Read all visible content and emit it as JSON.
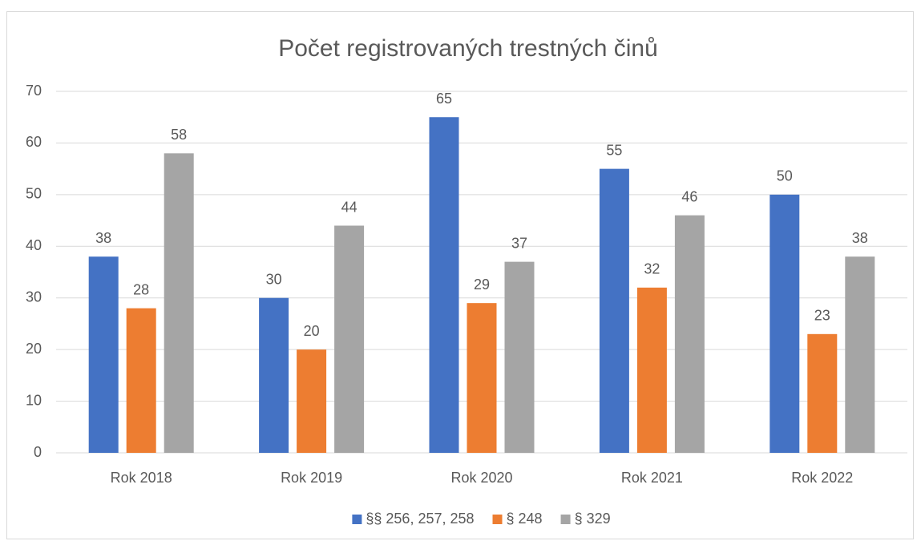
{
  "chart_data": {
    "type": "bar",
    "title": "Počet registrovaných trestných činů",
    "categories": [
      "Rok 2018",
      "Rok 2019",
      "Rok 2020",
      "Rok 2021",
      "Rok 2022"
    ],
    "series": [
      {
        "name": "§§ 256, 257, 258",
        "color": "#4472c4",
        "values": [
          38,
          30,
          65,
          55,
          50
        ]
      },
      {
        "name": "§ 248",
        "color": "#ed7d31",
        "values": [
          28,
          20,
          29,
          32,
          23
        ]
      },
      {
        "name": "§ 329",
        "color": "#a5a5a5",
        "values": [
          58,
          44,
          37,
          46,
          38
        ]
      }
    ],
    "ylim": [
      0,
      70
    ],
    "yticks": [
      0,
      10,
      20,
      30,
      40,
      50,
      60,
      70
    ],
    "grid": true,
    "legend": "bottom"
  }
}
